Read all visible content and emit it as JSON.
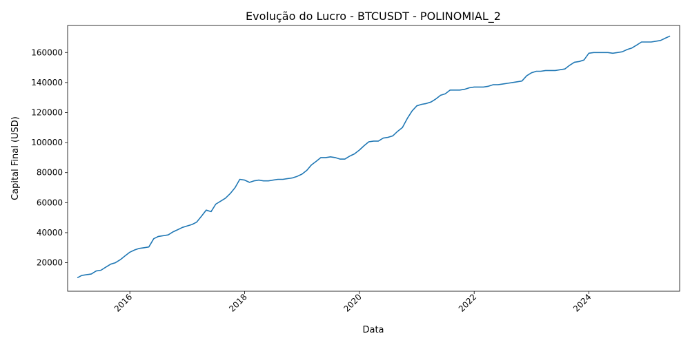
{
  "chart_data": {
    "type": "line",
    "title": "Evolução do Lucro - BTCUSDT - POLINOMIAL_2",
    "xlabel": "Data",
    "ylabel": "Capital Final (USD)",
    "xlim": [
      "2014-12-01",
      "2025-08-01"
    ],
    "ylim": [
      1000,
      178000
    ],
    "x_ticks": [
      "2016",
      "2018",
      "2020",
      "2022",
      "2024"
    ],
    "y_ticks": [
      20000,
      40000,
      60000,
      80000,
      100000,
      120000,
      140000,
      160000
    ],
    "y_tick_labels": [
      "20000",
      "40000",
      "60000",
      "80000",
      "100000",
      "120000",
      "140000",
      "160000"
    ],
    "grid": false,
    "line_color": "#1f77b4",
    "series": [
      {
        "x": [
          "2015-02-01",
          "2015-03-01",
          "2015-05-01",
          "2015-06-01",
          "2015-07-01",
          "2015-08-01",
          "2015-09-01",
          "2015-10-01",
          "2015-11-01",
          "2015-12-01",
          "2016-01-01",
          "2016-02-01",
          "2016-03-01",
          "2016-04-01",
          "2016-05-01",
          "2016-06-01",
          "2016-07-01",
          "2016-08-01",
          "2016-09-01",
          "2016-10-01",
          "2016-11-01",
          "2016-12-01",
          "2017-01-01",
          "2017-02-01",
          "2017-03-01",
          "2017-04-01",
          "2017-05-01",
          "2017-06-01",
          "2017-07-01",
          "2017-08-01",
          "2017-09-01",
          "2017-10-01",
          "2017-11-01",
          "2017-12-01",
          "2018-01-01",
          "2018-02-01",
          "2018-03-01",
          "2018-04-01",
          "2018-05-01",
          "2018-06-01",
          "2018-07-01",
          "2018-08-01",
          "2018-09-01",
          "2018-10-01",
          "2018-11-01",
          "2018-12-01",
          "2019-01-01",
          "2019-02-01",
          "2019-03-01",
          "2019-04-01",
          "2019-05-01",
          "2019-06-01",
          "2019-07-01",
          "2019-08-01",
          "2019-09-01",
          "2019-10-01",
          "2019-11-01",
          "2019-12-01",
          "2020-01-01",
          "2020-02-01",
          "2020-03-01",
          "2020-04-01",
          "2020-05-01",
          "2020-06-01",
          "2020-07-01",
          "2020-08-01",
          "2020-09-01",
          "2020-10-01",
          "2020-11-01",
          "2020-12-01",
          "2021-01-01",
          "2021-02-01",
          "2021-03-01",
          "2021-04-01",
          "2021-05-01",
          "2021-06-01",
          "2021-07-01",
          "2021-08-01",
          "2021-09-01",
          "2021-10-01",
          "2021-11-01",
          "2021-12-01",
          "2022-01-01",
          "2022-02-01",
          "2022-03-01",
          "2022-04-01",
          "2022-05-01",
          "2022-06-01",
          "2022-07-01",
          "2022-08-01",
          "2022-09-01",
          "2022-10-01",
          "2022-11-01",
          "2022-12-01",
          "2023-01-01",
          "2023-02-01",
          "2023-03-01",
          "2023-04-01",
          "2023-05-01",
          "2023-06-01",
          "2023-07-01",
          "2023-08-01",
          "2023-09-01",
          "2023-10-01",
          "2023-11-01",
          "2023-12-01",
          "2024-01-01",
          "2024-02-01",
          "2024-03-01",
          "2024-04-01",
          "2024-05-01",
          "2024-06-01",
          "2024-07-01",
          "2024-08-01",
          "2024-09-01",
          "2024-10-01",
          "2024-11-01",
          "2024-12-01",
          "2025-01-01",
          "2025-02-01",
          "2025-03-01",
          "2025-04-01",
          "2025-05-01",
          "2025-06-01"
        ],
        "y": [
          10000,
          11500,
          12500,
          14500,
          15000,
          17000,
          19000,
          20000,
          22000,
          24500,
          27000,
          28500,
          29500,
          30000,
          30500,
          36000,
          37500,
          38000,
          38500,
          40500,
          42000,
          43500,
          44500,
          45500,
          47000,
          51000,
          55000,
          54000,
          59000,
          61000,
          63000,
          66000,
          70000,
          75500,
          75000,
          73500,
          74500,
          75000,
          74500,
          74500,
          75000,
          75500,
          75500,
          76000,
          76500,
          77500,
          79000,
          81500,
          85000,
          87500,
          90000,
          90000,
          90500,
          90000,
          89000,
          89000,
          91000,
          92500,
          95000,
          98000,
          100500,
          101000,
          101000,
          103000,
          103500,
          104500,
          107500,
          110000,
          116000,
          121000,
          124500,
          125500,
          126000,
          127000,
          129000,
          131500,
          132500,
          135000,
          135000,
          135000,
          135500,
          136500,
          137000,
          137000,
          137000,
          137500,
          138500,
          138500,
          139000,
          139500,
          140000,
          140500,
          141000,
          144500,
          146500,
          147500,
          147500,
          148000,
          148000,
          148000,
          148500,
          149000,
          151500,
          153500,
          154000,
          155000,
          159500,
          160000,
          160000,
          160000,
          160000,
          159500,
          160000,
          160500,
          162000,
          163000,
          165000,
          167000,
          167000,
          167000,
          167500,
          168000,
          169500,
          171000
        ]
      }
    ]
  }
}
